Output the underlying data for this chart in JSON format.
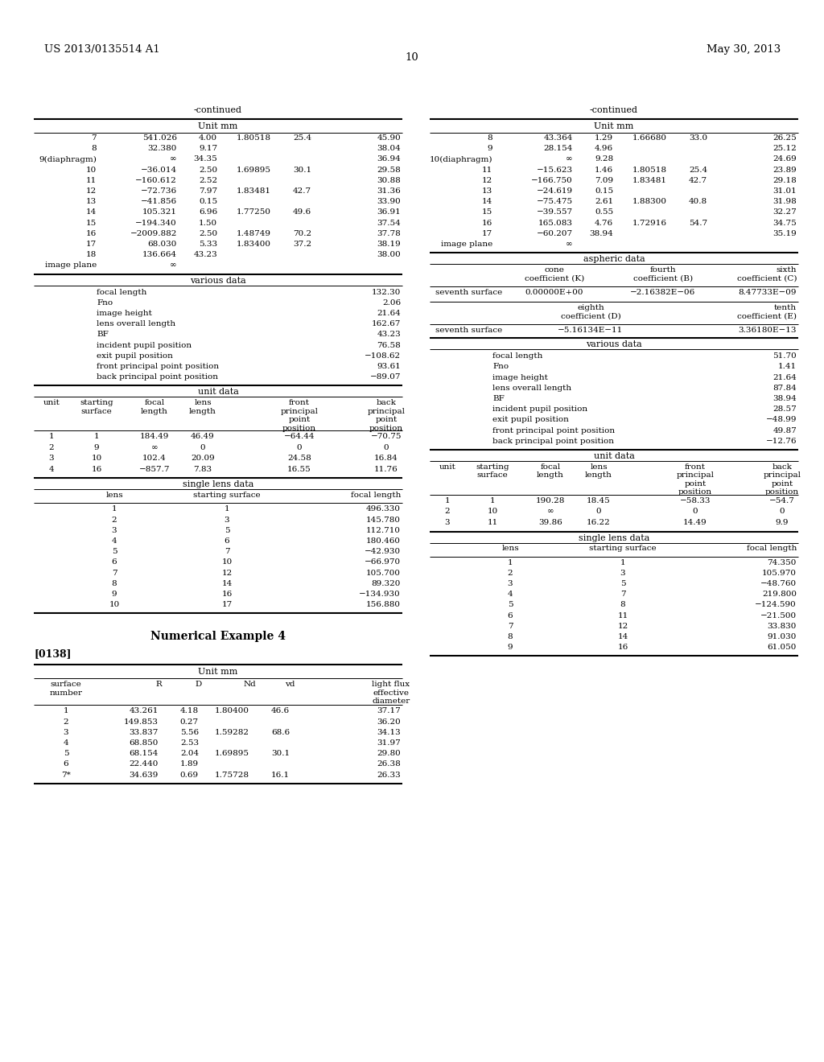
{
  "header_left": "US 2013/0135514 A1",
  "header_center": "10",
  "header_right": "May 30, 2013",
  "bg_color": "#ffffff",
  "left_col": {
    "continued": "-continued",
    "unit_mm": "Unit mm",
    "lens_rows": [
      [
        "7",
        "541.026",
        "4.00",
        "1.80518",
        "25.4",
        "45.90"
      ],
      [
        "8",
        "32.380",
        "9.17",
        "",
        "",
        "38.04"
      ],
      [
        "9(diaphragm)",
        "∞",
        "34.35",
        "",
        "",
        "36.94"
      ],
      [
        "10",
        "−36.014",
        "2.50",
        "1.69895",
        "30.1",
        "29.58"
      ],
      [
        "11",
        "−160.612",
        "2.52",
        "",
        "",
        "30.88"
      ],
      [
        "12",
        "−72.736",
        "7.97",
        "1.83481",
        "42.7",
        "31.36"
      ],
      [
        "13",
        "−41.856",
        "0.15",
        "",
        "",
        "33.90"
      ],
      [
        "14",
        "105.321",
        "6.96",
        "1.77250",
        "49.6",
        "36.91"
      ],
      [
        "15",
        "−194.340",
        "1.50",
        "",
        "",
        "37.54"
      ],
      [
        "16",
        "−2009.882",
        "2.50",
        "1.48749",
        "70.2",
        "37.78"
      ],
      [
        "17",
        "68.030",
        "5.33",
        "1.83400",
        "37.2",
        "38.19"
      ],
      [
        "18",
        "136.664",
        "43.23",
        "",
        "",
        "38.00"
      ],
      [
        "image plane",
        "∞",
        "",
        "",
        "",
        ""
      ]
    ],
    "various_rows": [
      [
        "focal length",
        "132.30"
      ],
      [
        "Fno",
        "2.06"
      ],
      [
        "image height",
        "21.64"
      ],
      [
        "lens overall length",
        "162.67"
      ],
      [
        "BF",
        "43.23"
      ],
      [
        "incident pupil position",
        "76.58"
      ],
      [
        "exit pupil position",
        "−108.62"
      ],
      [
        "front principal point position",
        "93.61"
      ],
      [
        "back principal point position",
        "−89.07"
      ]
    ],
    "unit_hdr": [
      "unit",
      "starting\nsurface",
      "focal\nlength",
      "lens\nlength",
      "front\nprincipal\npoint\nposition",
      "back\nprincipal\npoint\nposition"
    ],
    "unit_rows": [
      [
        "1",
        "1",
        "184.49",
        "46.49",
        "−64.44",
        "−70.75"
      ],
      [
        "2",
        "9",
        "∞",
        "0",
        "0",
        "0"
      ],
      [
        "3",
        "10",
        "102.4",
        "20.09",
        "24.58",
        "16.84"
      ],
      [
        "4",
        "16",
        "−857.7",
        "7.83",
        "16.55",
        "11.76"
      ]
    ],
    "sld_rows": [
      [
        "1",
        "1",
        "496.330"
      ],
      [
        "2",
        "3",
        "145.780"
      ],
      [
        "3",
        "5",
        "112.710"
      ],
      [
        "4",
        "6",
        "180.460"
      ],
      [
        "5",
        "7",
        "−42.930"
      ],
      [
        "6",
        "10",
        "−66.970"
      ],
      [
        "7",
        "12",
        "105.700"
      ],
      [
        "8",
        "14",
        "89.320"
      ],
      [
        "9",
        "16",
        "−134.930"
      ],
      [
        "10",
        "17",
        "156.880"
      ]
    ]
  },
  "ne4": {
    "title": "Numerical Example 4",
    "para": "[0138]",
    "unit_mm": "Unit mm",
    "lens_rows": [
      [
        "1",
        "43.261",
        "4.18",
        "1.80400",
        "46.6",
        "37.17"
      ],
      [
        "2",
        "149.853",
        "0.27",
        "",
        "",
        "36.20"
      ],
      [
        "3",
        "33.837",
        "5.56",
        "1.59282",
        "68.6",
        "34.13"
      ],
      [
        "4",
        "68.850",
        "2.53",
        "",
        "",
        "31.97"
      ],
      [
        "5",
        "68.154",
        "2.04",
        "1.69895",
        "30.1",
        "29.80"
      ],
      [
        "6",
        "22.440",
        "1.89",
        "",
        "",
        "26.38"
      ],
      [
        "7*",
        "34.639",
        "0.69",
        "1.75728",
        "16.1",
        "26.33"
      ]
    ]
  },
  "right_col": {
    "continued": "-continued",
    "unit_mm": "Unit mm",
    "lens_rows": [
      [
        "8",
        "43.364",
        "1.29",
        "1.66680",
        "33.0",
        "26.25"
      ],
      [
        "9",
        "28.154",
        "4.96",
        "",
        "",
        "25.12"
      ],
      [
        "10(diaphragm)",
        "∞",
        "9.28",
        "",
        "",
        "24.69"
      ],
      [
        "11",
        "−15.623",
        "1.46",
        "1.80518",
        "25.4",
        "23.89"
      ],
      [
        "12",
        "−166.750",
        "7.09",
        "1.83481",
        "42.7",
        "29.18"
      ],
      [
        "13",
        "−24.619",
        "0.15",
        "",
        "",
        "31.01"
      ],
      [
        "14",
        "−75.475",
        "2.61",
        "1.88300",
        "40.8",
        "31.98"
      ],
      [
        "15",
        "−39.557",
        "0.55",
        "",
        "",
        "32.27"
      ],
      [
        "16",
        "165.083",
        "4.76",
        "1.72916",
        "54.7",
        "34.75"
      ],
      [
        "17",
        "−60.207",
        "38.94",
        "",
        "",
        "35.19"
      ],
      [
        "image plane",
        "∞",
        "",
        "",
        "",
        ""
      ]
    ],
    "asp_row1": [
      "seventh surface",
      "0.00000E+00",
      "−2.16382E−06",
      "8.47733E−09"
    ],
    "asp_row2": [
      "seventh surface",
      "−5.16134E−11",
      "3.36180E−13"
    ],
    "various_rows": [
      [
        "focal length",
        "51.70"
      ],
      [
        "Fno",
        "1.41"
      ],
      [
        "image height",
        "21.64"
      ],
      [
        "lens overall length",
        "87.84"
      ],
      [
        "BF",
        "38.94"
      ],
      [
        "incident pupil position",
        "28.57"
      ],
      [
        "exit pupil position",
        "−48.99"
      ],
      [
        "front principal point position",
        "49.87"
      ],
      [
        "back principal point position",
        "−12.76"
      ]
    ],
    "unit_hdr": [
      "unit",
      "starting\nsurface",
      "focal\nlength",
      "lens\nlength",
      "front\nprincipal\npoint\nposition",
      "back\nprincipal\npoint\nposition"
    ],
    "unit_rows": [
      [
        "1",
        "1",
        "190.28",
        "18.45",
        "−58.33",
        "−54.7"
      ],
      [
        "2",
        "10",
        "∞",
        "0",
        "0",
        "0"
      ],
      [
        "3",
        "11",
        "39.86",
        "16.22",
        "14.49",
        "9.9"
      ]
    ],
    "sld_rows": [
      [
        "1",
        "1",
        "74.350"
      ],
      [
        "2",
        "3",
        "105.970"
      ],
      [
        "3",
        "5",
        "−48.760"
      ],
      [
        "4",
        "7",
        "219.800"
      ],
      [
        "5",
        "8",
        "−124.590"
      ],
      [
        "6",
        "11",
        "−21.500"
      ],
      [
        "7",
        "12",
        "33.830"
      ],
      [
        "8",
        "14",
        "91.030"
      ],
      [
        "9",
        "16",
        "61.050"
      ]
    ]
  }
}
